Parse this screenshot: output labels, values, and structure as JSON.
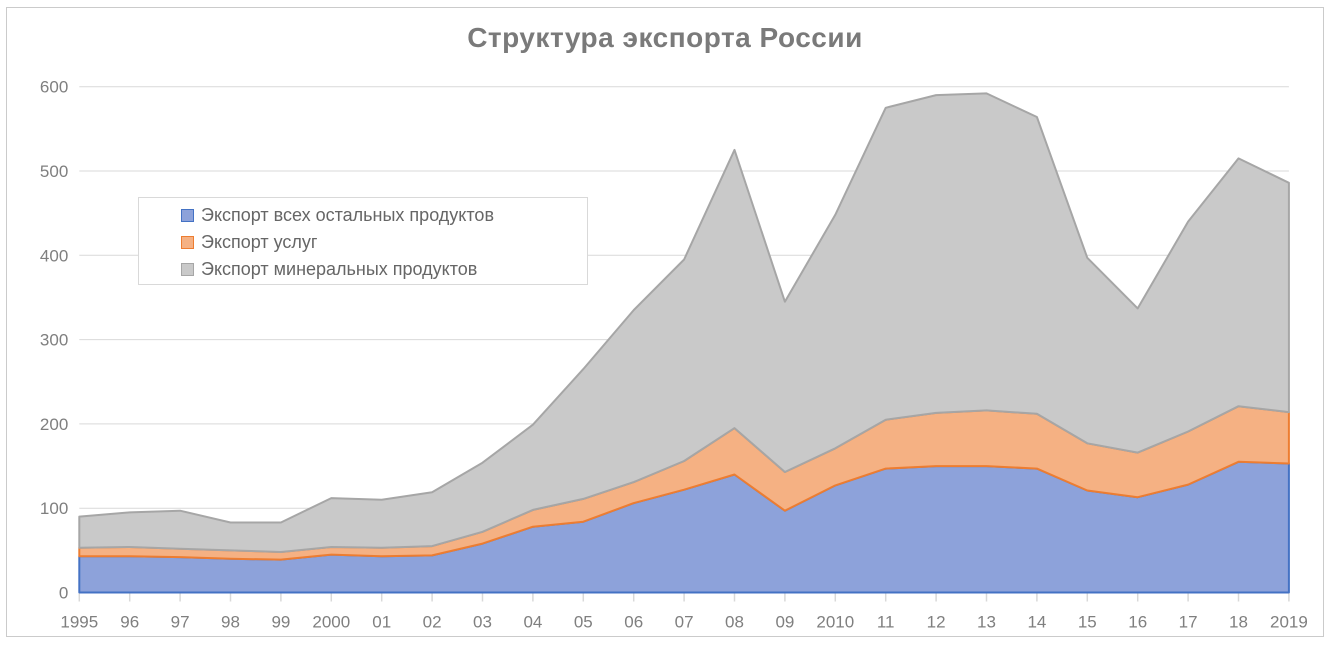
{
  "chart_data": {
    "type": "area",
    "stacked": true,
    "title": "Структура экспорта России",
    "categories": [
      "1995",
      "96",
      "97",
      "98",
      "99",
      "2000",
      "01",
      "02",
      "03",
      "04",
      "05",
      "06",
      "07",
      "08",
      "09",
      "2010",
      "11",
      "12",
      "13",
      "14",
      "15",
      "16",
      "17",
      "18",
      "2019"
    ],
    "series": [
      {
        "name": "Экспорт всех остальных продуктов",
        "fill": "#8DA2DA",
        "stroke": "#4472C4",
        "values": [
          43,
          43,
          42,
          40,
          39,
          45,
          43,
          44,
          58,
          78,
          84,
          106,
          122,
          140,
          97,
          127,
          147,
          150,
          150,
          147,
          121,
          113,
          128,
          155,
          153
        ]
      },
      {
        "name": "Экспорт услуг",
        "fill": "#F5B183",
        "stroke": "#ED7D31",
        "values": [
          10,
          11,
          10,
          10,
          9,
          9,
          10,
          11,
          14,
          20,
          27,
          25,
          34,
          55,
          46,
          44,
          58,
          63,
          66,
          65,
          56,
          53,
          63,
          66,
          61
        ]
      },
      {
        "name": "Экспорт минеральных продуктов",
        "fill": "#C9C9C9",
        "stroke": "#A6A6A6",
        "values": [
          37,
          41,
          45,
          33,
          35,
          58,
          57,
          64,
          82,
          101,
          154,
          204,
          239,
          330,
          202,
          277,
          370,
          377,
          376,
          352,
          220,
          171,
          249,
          294,
          272
        ]
      }
    ],
    "stacked_totals": [
      90,
      95,
      97,
      83,
      83,
      112,
      110,
      119,
      154,
      199,
      265,
      335,
      395,
      525,
      345,
      448,
      575,
      590,
      592,
      564,
      397,
      337,
      440,
      515,
      486
    ],
    "xlabel": "",
    "ylabel": "",
    "ylim": [
      0,
      600
    ],
    "yticks": [
      0,
      100,
      200,
      300,
      400,
      500,
      600
    ],
    "grid": "horizontal",
    "legend_position": "upper-left-inside",
    "title_color": "#7A7A7A",
    "axis_label_color": "#7F7F7F",
    "gridline_color": "#D9D9D9",
    "legend_text_color": "#666666",
    "frame_border_color": "#CBCBCB"
  }
}
